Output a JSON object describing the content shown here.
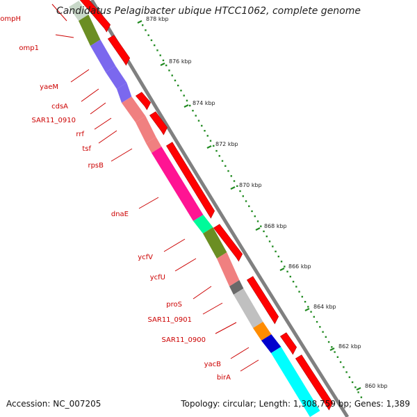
{
  "title": "Candidatus Pelagibacter ubique HTCC1062, complete genome",
  "footer": {
    "accession": "Accession: NC_007205",
    "topology": "Topology: circular; Length: 1,308,759 bp; Genes: 1,389"
  },
  "scale": {
    "ticks": [
      "878 kbp",
      "876 kbp",
      "874 kbp",
      "872 kbp",
      "870 kbp",
      "868 kbp",
      "866 kbp",
      "864 kbp",
      "862 kbp",
      "860 kbp"
    ]
  },
  "genes": [
    {
      "name": "ompH",
      "color": "#c8d8c8"
    },
    {
      "name": "omp1",
      "color": "#6b8e23"
    },
    {
      "name": "yaeM",
      "color": "#7b68ee"
    },
    {
      "name": "cdsA",
      "color": "#7b68ee"
    },
    {
      "name": "SAR11_0910",
      "color": "#7b68ee"
    },
    {
      "name": "rrf",
      "color": "#f08080"
    },
    {
      "name": "tsf",
      "color": "#f08080"
    },
    {
      "name": "rpsB",
      "color": "#f08080"
    },
    {
      "name": "dnaE",
      "color": "#ff1493"
    },
    {
      "name": "ycfV",
      "color": "#00fa9a"
    },
    {
      "name": "ycfU",
      "color": "#6b8e23"
    },
    {
      "name": "proS",
      "color": "#f08080"
    },
    {
      "name": "SAR11_0901",
      "color": "#696969"
    },
    {
      "name": "SAR11_0900",
      "color": "#c0c0c0"
    },
    {
      "name": "yacB",
      "color": "#ff8c00"
    },
    {
      "name": "birA",
      "color": "#0000cd"
    }
  ],
  "colors": {
    "feature_arrow": "#ff0000",
    "backbone": "#808080",
    "scale_dots": "#228b22",
    "gene_label": "#cc0000"
  }
}
